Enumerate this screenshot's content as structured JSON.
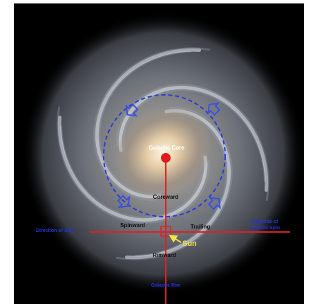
{
  "labels": {
    "core": "Galactic Core",
    "coreward": "Coreward",
    "spinward": "Spinward",
    "trailing": "Trailing",
    "sun": "Sun",
    "rimward": "Rimward",
    "left": "Direction of Spin",
    "right": [
      "Opposite of",
      "Galactic Spin"
    ],
    "bottom": "Galactic Rim"
  }
}
